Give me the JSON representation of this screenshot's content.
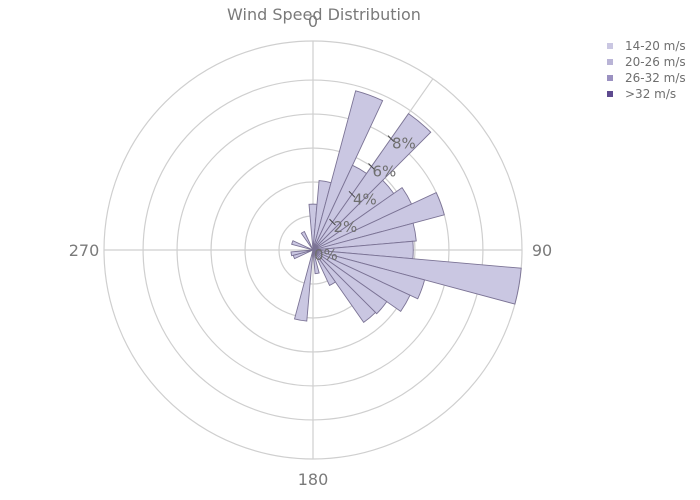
{
  "chart_data": {
    "type": "barpolar",
    "title": "Wind Speed Distribution",
    "angular_axis": {
      "direction": "clockwise",
      "rotation": 90,
      "tick_labels": [
        "0",
        "90",
        "180",
        "270"
      ],
      "tick_values": [
        0,
        90,
        180,
        270
      ]
    },
    "radial_axis": {
      "range": [
        0,
        12.3
      ],
      "tick_values": [
        0,
        2,
        4,
        6,
        8
      ],
      "tick_labels": [
        "0%",
        "2%",
        "4%",
        "6%",
        "8%"
      ],
      "tick_angle_deg": 35,
      "ring_values": [
        2,
        4,
        6,
        8,
        10,
        12.3
      ]
    },
    "grid": true,
    "legend": {
      "position": "top-right",
      "entries": [
        {
          "name": "14-20 m/s",
          "color": "#cac7e2"
        },
        {
          "name": "20-26 m/s",
          "color": "#b9b4d6"
        },
        {
          "name": "26-32 m/s",
          "color": "#9b91c1"
        },
        {
          "name": ">32 m/s",
          "color": "#5e4a8f"
        }
      ]
    },
    "bar_width_deg": 10,
    "bars": [
      {
        "theta": 0,
        "r": 2.7
      },
      {
        "theta": 10,
        "r": 4.1
      },
      {
        "theta": 20,
        "r": 9.7
      },
      {
        "theta": 30,
        "r": 5.5
      },
      {
        "theta": 40,
        "r": 9.8
      },
      {
        "theta": 50,
        "r": 5.8
      },
      {
        "theta": 60,
        "r": 6.4
      },
      {
        "theta": 70,
        "r": 8.0
      },
      {
        "theta": 80,
        "r": 6.1
      },
      {
        "theta": 90,
        "r": 5.9
      },
      {
        "theta": 100,
        "r": 12.3
      },
      {
        "theta": 110,
        "r": 6.8
      },
      {
        "theta": 120,
        "r": 6.3
      },
      {
        "theta": 130,
        "r": 5.3
      },
      {
        "theta": 140,
        "r": 5.2
      },
      {
        "theta": 150,
        "r": 2.3
      },
      {
        "theta": 170,
        "r": 1.4
      },
      {
        "theta": 190,
        "r": 4.2
      },
      {
        "theta": 250,
        "r": 1.2
      },
      {
        "theta": 260,
        "r": 1.3
      },
      {
        "theta": 290,
        "r": 1.3
      },
      {
        "theta": 330,
        "r": 1.2
      }
    ]
  }
}
